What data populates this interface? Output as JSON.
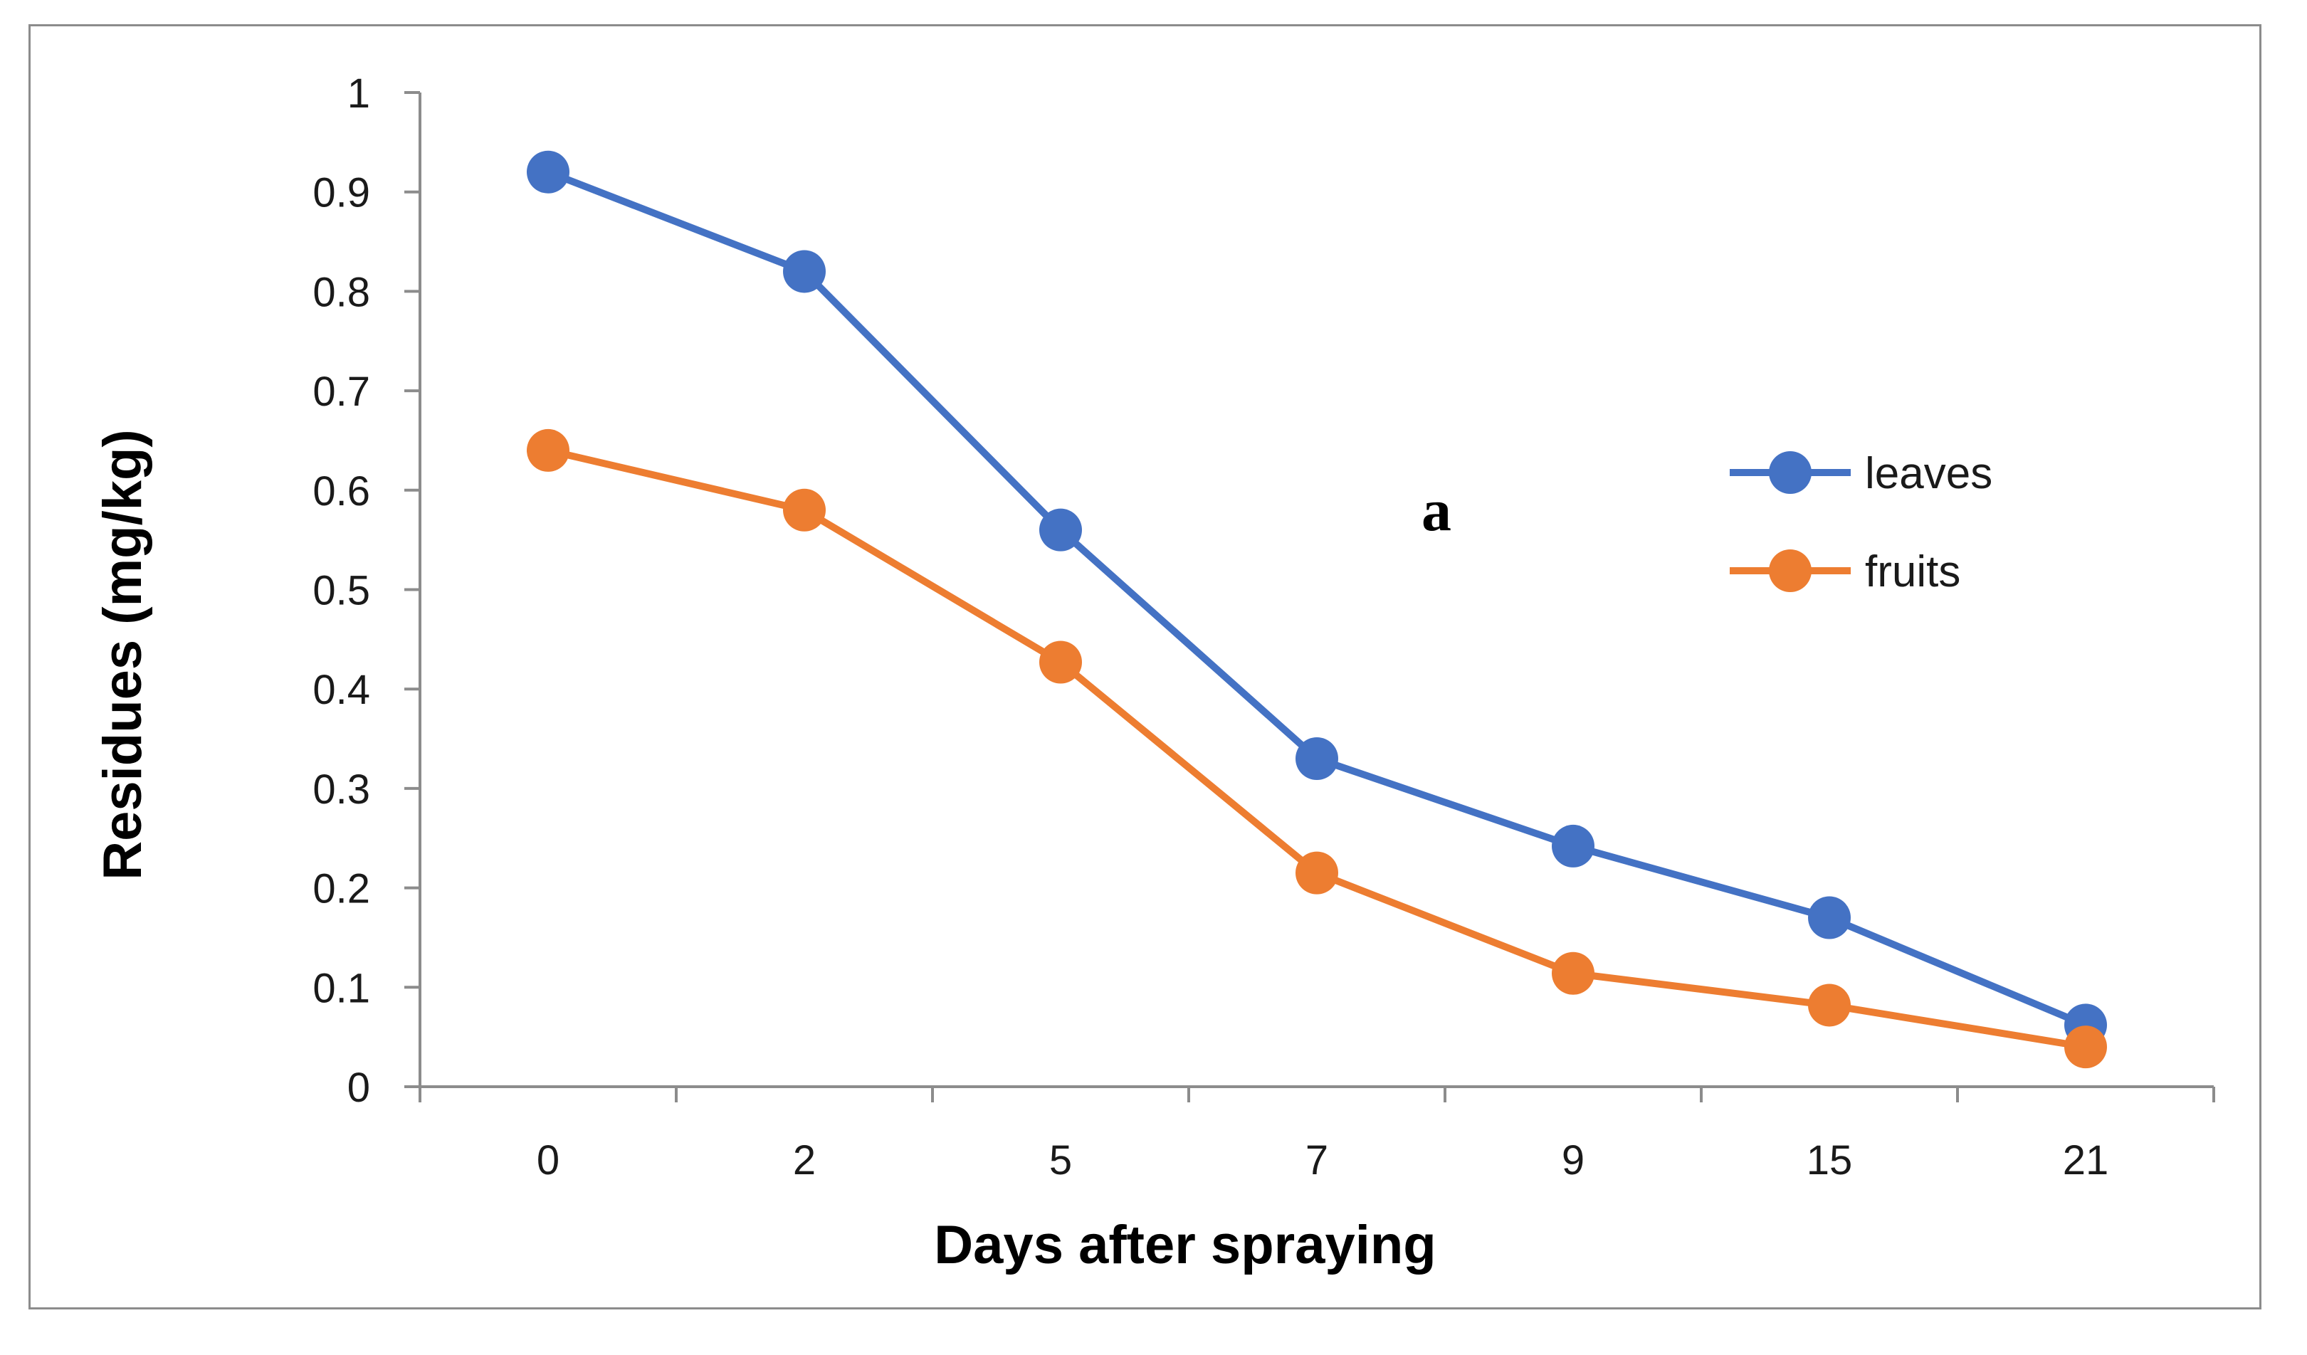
{
  "chart_data": {
    "type": "line",
    "title": "",
    "panel_label": "a",
    "xlabel": "Days after spraying",
    "ylabel": "Residues (mg/kg)",
    "categories": [
      "0",
      "2",
      "5",
      "7",
      "9",
      "15",
      "21"
    ],
    "ylim": [
      0,
      1
    ],
    "ytick_values": [
      0,
      0.1,
      0.2,
      0.3,
      0.4,
      0.5,
      0.6,
      0.7,
      0.8,
      0.9,
      1
    ],
    "ytick_labels": [
      "0",
      "0.1",
      "0.2",
      "0.3",
      "0.4",
      "0.5",
      "0.6",
      "0.7",
      "0.8",
      "0.9",
      "1"
    ],
    "grid": false,
    "legend_position": "right",
    "series": [
      {
        "name": "leaves",
        "color": "#4472C4",
        "values": [
          0.92,
          0.82,
          0.56,
          0.33,
          0.242,
          0.17,
          0.062
        ]
      },
      {
        "name": "fruits",
        "color": "#ED7D31",
        "values": [
          0.64,
          0.58,
          0.427,
          0.215,
          0.114,
          0.082,
          0.04
        ]
      }
    ]
  }
}
